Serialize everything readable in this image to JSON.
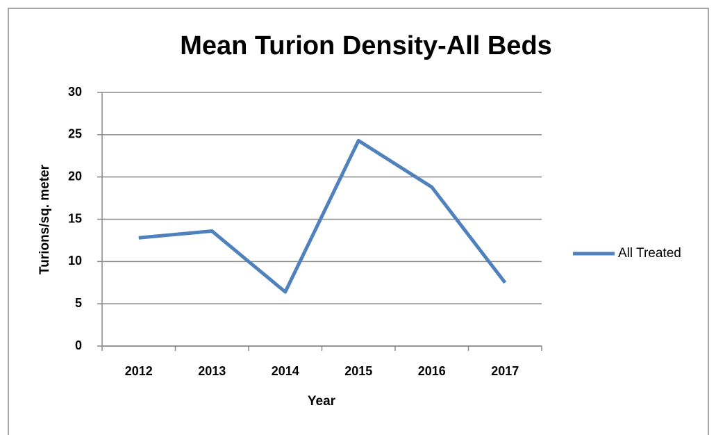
{
  "chart_data": {
    "type": "line",
    "title": "Mean Turion Density-All Beds",
    "x_label": "Year",
    "y_label": "Turions/sq. meter",
    "categories": [
      "2012",
      "2013",
      "2014",
      "2015",
      "2016",
      "2017"
    ],
    "series": [
      {
        "name": "All Treated",
        "color": "#4f81bd",
        "values": [
          12.8,
          13.6,
          6.4,
          24.3,
          18.8,
          7.5
        ]
      }
    ],
    "ylim": [
      0,
      30
    ],
    "yticks": [
      0,
      5,
      10,
      15,
      20,
      25,
      30
    ],
    "grid": true,
    "legend": "right"
  }
}
